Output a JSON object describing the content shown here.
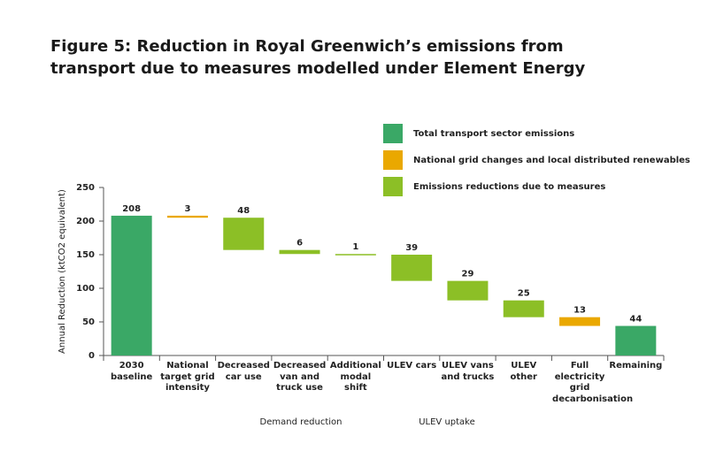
{
  "chart_data": {
    "type": "waterfall",
    "title": "Figure 5: Reduction in Royal Greenwich’s emissions from transport due to measures modelled under Element Energy",
    "y_label": "Annual Reduction (ktCO2 equivalent)",
    "categories": [
      "2030 baseline",
      "National target grid intensity",
      "Decreased car use",
      "Decreased van and truck use",
      "Additional modal shift",
      "ULEV cars",
      "ULEV vans and trucks",
      "ULEV other",
      "Full electricity grid decarbonisation",
      "Remaining"
    ],
    "series": [
      {
        "name": "Total transport sector emissions",
        "color": "#3aa866",
        "values": [
          208,
          null,
          null,
          null,
          null,
          null,
          null,
          null,
          null,
          44
        ]
      },
      {
        "name": "National grid changes and local distributed renewables",
        "color": "#eaa800",
        "values": [
          null,
          3,
          null,
          null,
          null,
          null,
          null,
          null,
          13,
          null
        ]
      },
      {
        "name": "Emissions reductions due to measures",
        "color": "#8cbf26",
        "values": [
          null,
          null,
          48,
          6,
          1,
          39,
          29,
          25,
          null,
          null
        ]
      }
    ],
    "group_labels": [
      "Demand reduction",
      "ULEV uptake"
    ],
    "ylim": [
      0,
      250
    ],
    "yticks": [
      0,
      50,
      100,
      150,
      200,
      250
    ],
    "legend": "top-right"
  }
}
